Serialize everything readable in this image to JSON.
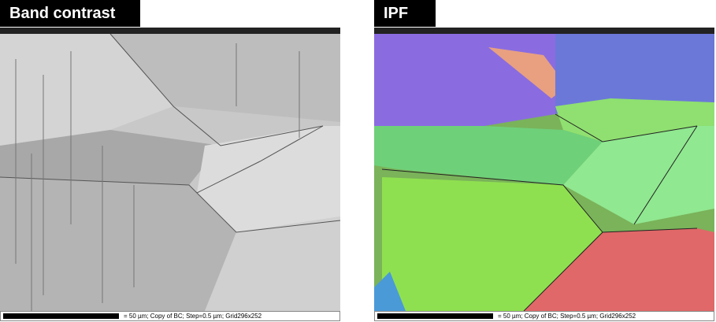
{
  "panels": [
    {
      "label": "Band contrast",
      "caption": "= 50 µm; Copy of BC; Step=0.5 µm; Grid296x252"
    },
    {
      "label": "IPF",
      "caption": "= 50 µm; Copy of BC; Step=0.5 µm; Grid296x252"
    }
  ]
}
